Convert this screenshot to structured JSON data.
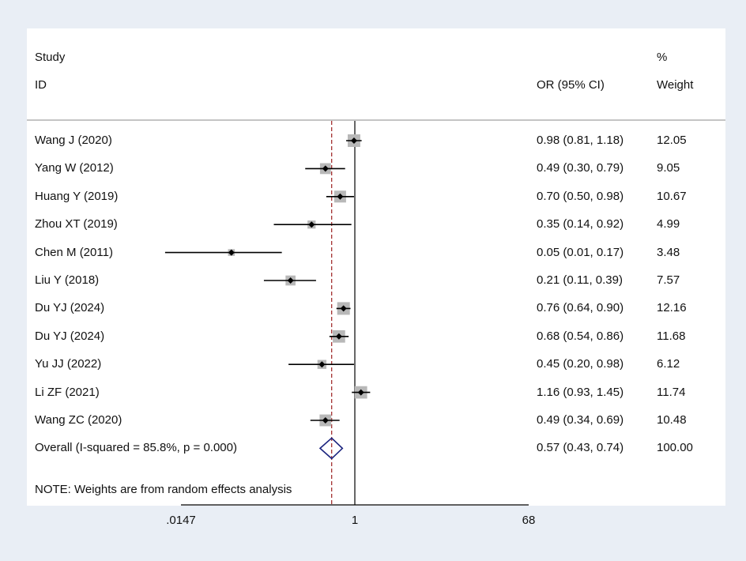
{
  "chart_data": {
    "type": "forest",
    "header": {
      "study_line1": "Study",
      "study_line2": "ID",
      "ci_label": "OR (95% CI)",
      "weight_line1": "%",
      "weight_line2": "Weight"
    },
    "studies": [
      {
        "id": "Wang J (2020)",
        "or": 0.98,
        "lo": 0.81,
        "hi": 1.18,
        "ci_text": "0.98 (0.81, 1.18)",
        "weight": "12.05"
      },
      {
        "id": "Yang W (2012)",
        "or": 0.49,
        "lo": 0.3,
        "hi": 0.79,
        "ci_text": "0.49 (0.30, 0.79)",
        "weight": "9.05"
      },
      {
        "id": "Huang Y (2019)",
        "or": 0.7,
        "lo": 0.5,
        "hi": 0.98,
        "ci_text": "0.70 (0.50, 0.98)",
        "weight": "10.67"
      },
      {
        "id": "Zhou XT (2019)",
        "or": 0.35,
        "lo": 0.14,
        "hi": 0.92,
        "ci_text": "0.35 (0.14, 0.92)",
        "weight": "4.99"
      },
      {
        "id": "Chen M (2011)",
        "or": 0.05,
        "lo": 0.01,
        "hi": 0.17,
        "ci_text": "0.05 (0.01, 0.17)",
        "weight": "3.48"
      },
      {
        "id": "Liu Y (2018)",
        "or": 0.21,
        "lo": 0.11,
        "hi": 0.39,
        "ci_text": "0.21 (0.11, 0.39)",
        "weight": "7.57"
      },
      {
        "id": "Du YJ (2024)",
        "or": 0.76,
        "lo": 0.64,
        "hi": 0.9,
        "ci_text": "0.76 (0.64, 0.90)",
        "weight": "12.16"
      },
      {
        "id": "Du YJ (2024)",
        "or": 0.68,
        "lo": 0.54,
        "hi": 0.86,
        "ci_text": "0.68 (0.54, 0.86)",
        "weight": "11.68"
      },
      {
        "id": "Yu JJ (2022)",
        "or": 0.45,
        "lo": 0.2,
        "hi": 0.98,
        "ci_text": "0.45 (0.20, 0.98)",
        "weight": "6.12"
      },
      {
        "id": "Li ZF (2021)",
        "or": 1.16,
        "lo": 0.93,
        "hi": 1.45,
        "ci_text": "1.16 (0.93, 1.45)",
        "weight": "11.74"
      },
      {
        "id": "Wang ZC (2020)",
        "or": 0.49,
        "lo": 0.34,
        "hi": 0.69,
        "ci_text": "0.49 (0.34, 0.69)",
        "weight": "10.48"
      }
    ],
    "overall": {
      "label": "Overall  (I-squared = 85.8%, p = 0.000)",
      "or": 0.57,
      "lo": 0.43,
      "hi": 0.74,
      "ci_text": "0.57 (0.43, 0.74)",
      "weight": "100.00"
    },
    "note": "NOTE: Weights are from random effects analysis",
    "x_scale": "log",
    "xlim": [
      0.0147,
      68
    ],
    "ticks": [
      {
        "value": 0.0147,
        "label": ".0147"
      },
      {
        "value": 1,
        "label": "1"
      },
      {
        "value": 68,
        "label": "68"
      }
    ],
    "reference_line": 1,
    "colors": {
      "box": "#b8b8b8",
      "point": "#000000",
      "ci_line": "#000000",
      "diamond": "#1a237e",
      "overall_line": "#9c2020",
      "background": "#e9eef5",
      "panel": "#ffffff"
    }
  }
}
